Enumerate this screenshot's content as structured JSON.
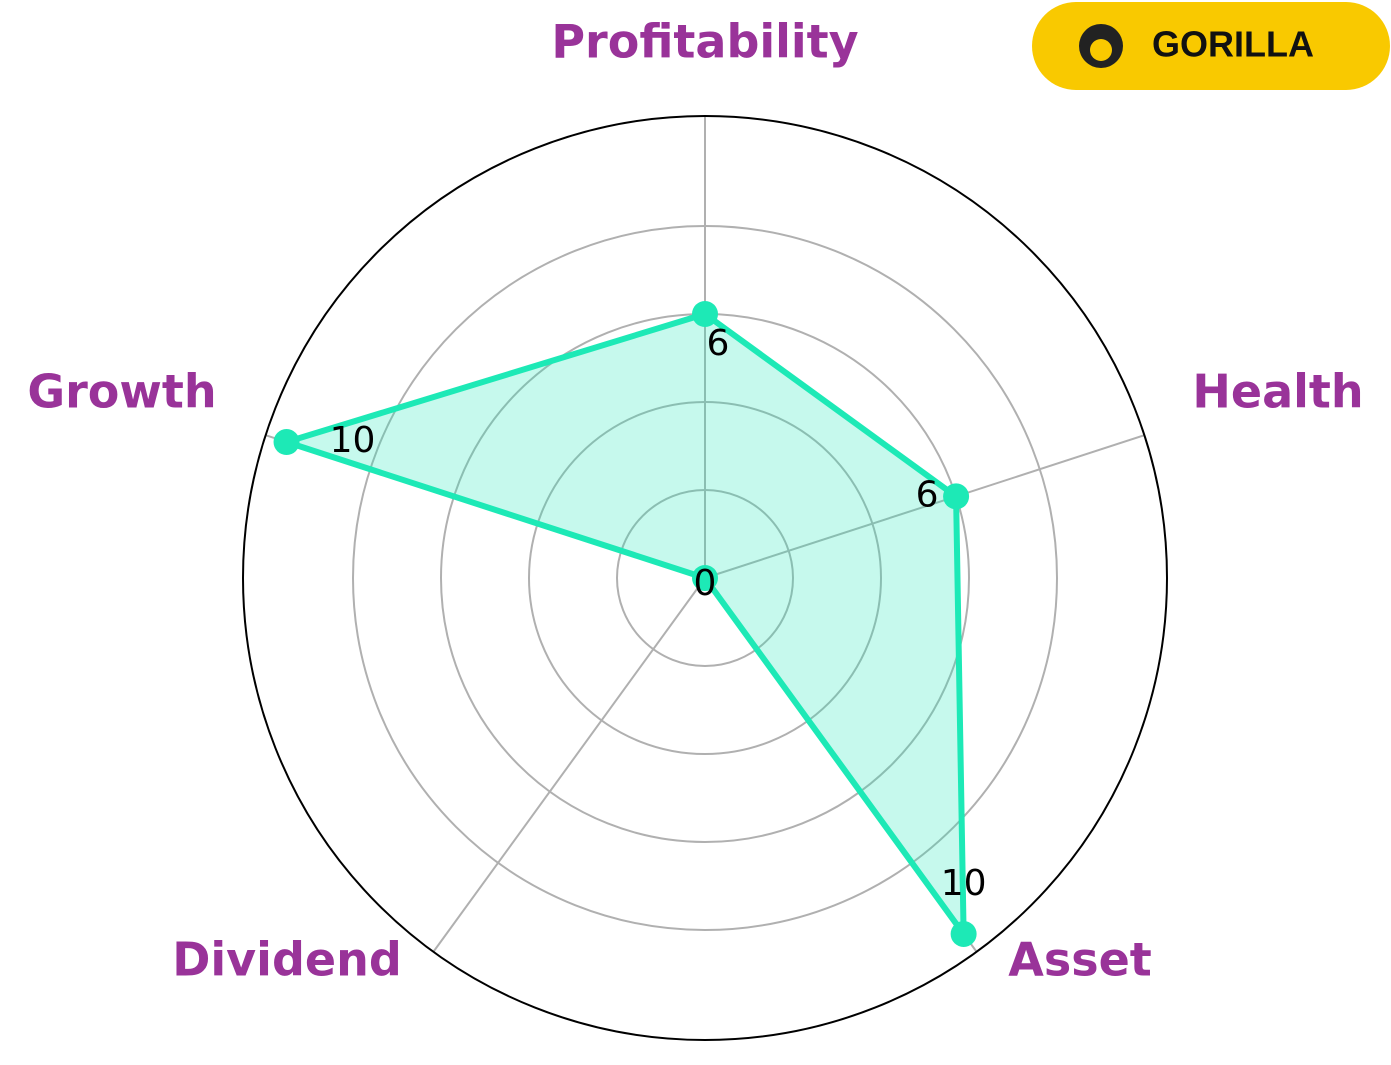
{
  "chart_data": {
    "type": "radar",
    "categories": [
      "Profitability",
      "Health",
      "Asset",
      "Dividend",
      "Growth"
    ],
    "values": [
      6,
      6,
      10,
      0,
      10
    ],
    "color": "#1de9b6",
    "label_color": "#993399",
    "ylim": [
      0,
      10.5
    ],
    "yticks": [
      2,
      4,
      6,
      8
    ],
    "grid": true
  },
  "logo": {
    "text": "GORILLA"
  }
}
